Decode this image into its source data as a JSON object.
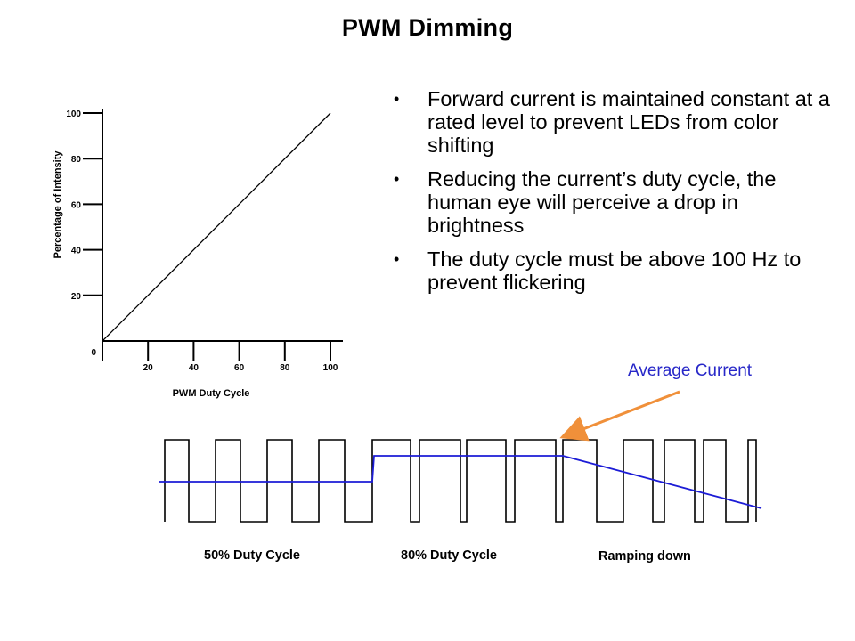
{
  "slide": {
    "title": "PWM Dimming",
    "bullets": [
      "Forward current is maintained constant at a rated level to prevent LEDs from color shifting",
      "Reducing the current’s duty cycle, the human eye will perceive a drop in brightness",
      "The duty cycle must be above 100 Hz to prevent flickering"
    ],
    "bullet_glyph": "•"
  },
  "chart_data": {
    "type": "line",
    "xlabel": "PWM Duty Cycle",
    "ylabel": "Percentage of Intensity",
    "origin_label": "0",
    "x_ticks": [
      "20",
      "40",
      "60",
      "80",
      "100"
    ],
    "y_ticks": [
      "20",
      "40",
      "60",
      "80",
      "100"
    ],
    "xlim": [
      0,
      100
    ],
    "ylim": [
      0,
      100
    ],
    "series": [
      {
        "x": [
          0,
          100
        ],
        "y": [
          0,
          100
        ]
      }
    ],
    "line_color": "#000000"
  },
  "waveform": {
    "segment_labels": [
      "50% Duty Cycle",
      "80% Duty Cycle",
      "Ramping down"
    ],
    "average_current_label": "Average Current",
    "colors": {
      "average_line": "#1c1cd6",
      "arrow": "#f0903a",
      "label": "#2727c8",
      "pulse": "#000000"
    }
  }
}
